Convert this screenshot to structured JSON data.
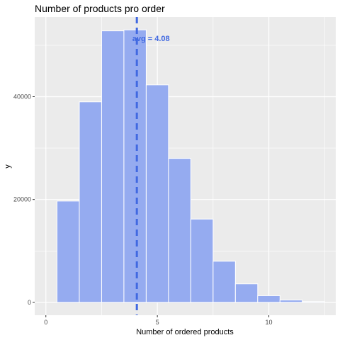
{
  "chart_data": {
    "type": "bar",
    "title": "Number of products pro order",
    "xlabel": "Number of ordered products",
    "ylabel": "y",
    "xlim": [
      -0.5,
      13.0
    ],
    "ylim": [
      -2500,
      55500
    ],
    "x_ticks": [
      0,
      5,
      10
    ],
    "y_ticks": [
      0,
      20000,
      40000
    ],
    "bin_width": 1,
    "bins": [
      {
        "x": 1,
        "count": 19700
      },
      {
        "x": 2,
        "count": 39000
      },
      {
        "x": 3,
        "count": 52800
      },
      {
        "x": 4,
        "count": 53000
      },
      {
        "x": 5,
        "count": 42300
      },
      {
        "x": 6,
        "count": 28000
      },
      {
        "x": 7,
        "count": 16200
      },
      {
        "x": 8,
        "count": 8000
      },
      {
        "x": 9,
        "count": 3600
      },
      {
        "x": 10,
        "count": 1300
      },
      {
        "x": 11,
        "count": 450
      },
      {
        "x": 12,
        "count": 150
      }
    ],
    "mean_line": {
      "x": 4.08,
      "label": "avg =  4.08",
      "color": "#4169e1"
    },
    "bar_fill": "#95abf0",
    "bar_stroke": "#ffffff",
    "panel_background": "#ebebeb",
    "grid": true
  }
}
